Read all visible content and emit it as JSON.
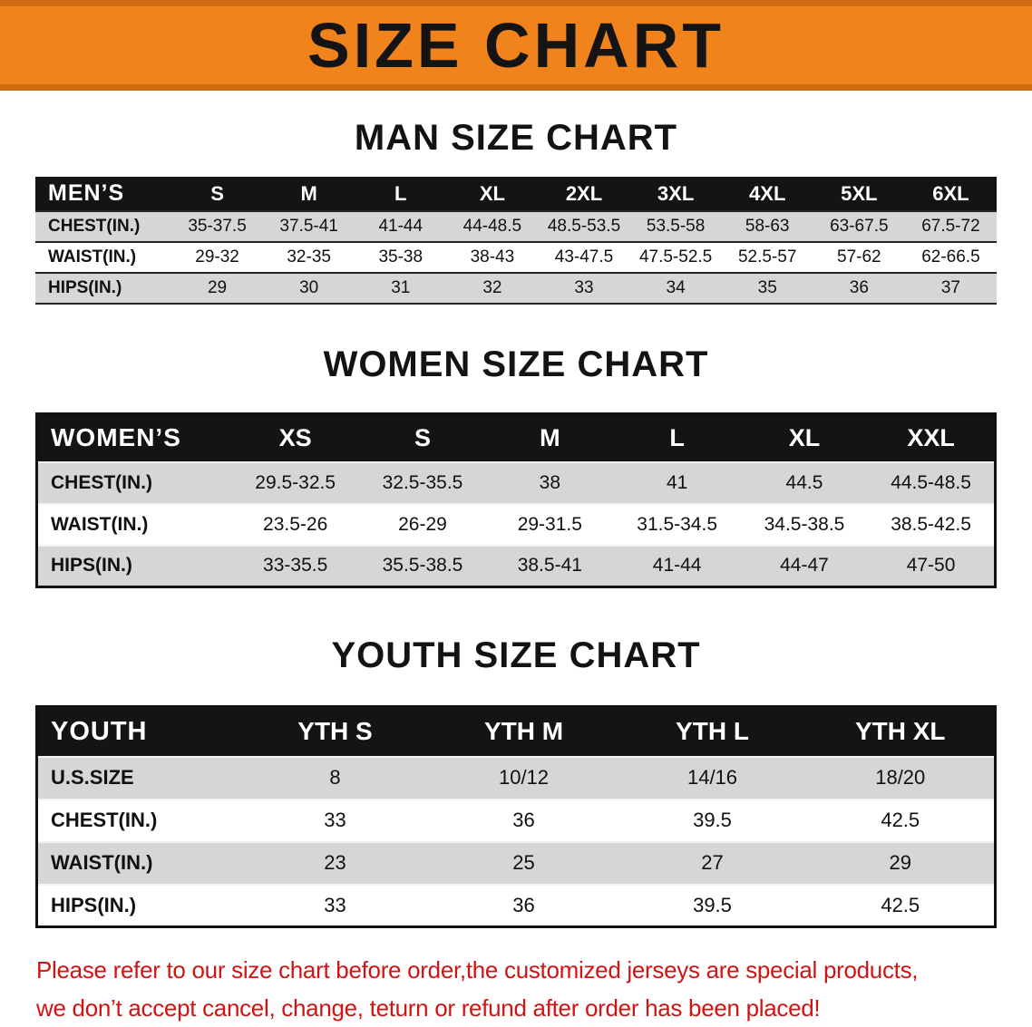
{
  "banner": {
    "title": "SIZE CHART"
  },
  "colors": {
    "banner_bg": "#f0831c",
    "banner_edge": "#cd6b12",
    "header_bg": "#141414",
    "row_alt": "#d6d6d6",
    "note_red": "#d01414"
  },
  "chart_data": [
    {
      "type": "table",
      "title": "MAN SIZE CHART",
      "columns": [
        "MEN’S",
        "S",
        "M",
        "L",
        "XL",
        "2XL",
        "3XL",
        "4XL",
        "5XL",
        "6XL"
      ],
      "rows": [
        [
          "CHEST(IN.)",
          "35-37.5",
          "37.5-41",
          "41-44",
          "44-48.5",
          "48.5-53.5",
          "53.5-58",
          "58-63",
          "63-67.5",
          "67.5-72"
        ],
        [
          "WAIST(IN.)",
          "29-32",
          "32-35",
          "35-38",
          "38-43",
          "43-47.5",
          "47.5-52.5",
          "52.5-57",
          "57-62",
          "62-66.5"
        ],
        [
          "HIPS(IN.)",
          "29",
          "30",
          "31",
          "32",
          "33",
          "34",
          "35",
          "36",
          "37"
        ]
      ]
    },
    {
      "type": "table",
      "title": "WOMEN SIZE CHART",
      "columns": [
        "WOMEN’S",
        "XS",
        "S",
        "M",
        "L",
        "XL",
        "XXL"
      ],
      "rows": [
        [
          "CHEST(IN.)",
          "29.5-32.5",
          "32.5-35.5",
          "38",
          "41",
          "44.5",
          "44.5-48.5"
        ],
        [
          "WAIST(IN.)",
          "23.5-26",
          "26-29",
          "29-31.5",
          "31.5-34.5",
          "34.5-38.5",
          "38.5-42.5"
        ],
        [
          "HIPS(IN.)",
          "33-35.5",
          "35.5-38.5",
          "38.5-41",
          "41-44",
          "44-47",
          "47-50"
        ]
      ]
    },
    {
      "type": "table",
      "title": "YOUTH SIZE CHART",
      "columns": [
        "YOUTH",
        "YTH S",
        "YTH M",
        "YTH L",
        "YTH XL"
      ],
      "rows": [
        [
          "U.S.SIZE",
          "8",
          "10/12",
          "14/16",
          "18/20"
        ],
        [
          "CHEST(IN.)",
          "33",
          "36",
          "39.5",
          "42.5"
        ],
        [
          "WAIST(IN.)",
          "23",
          "25",
          "27",
          "29"
        ],
        [
          "HIPS(IN.)",
          "33",
          "36",
          "39.5",
          "42.5"
        ]
      ]
    }
  ],
  "footer": {
    "lines": [
      "Please refer to our size chart before order,the customized jerseys are special products,",
      "we don’t accept cancel, change, teturn or refund after order has been placed!"
    ]
  }
}
